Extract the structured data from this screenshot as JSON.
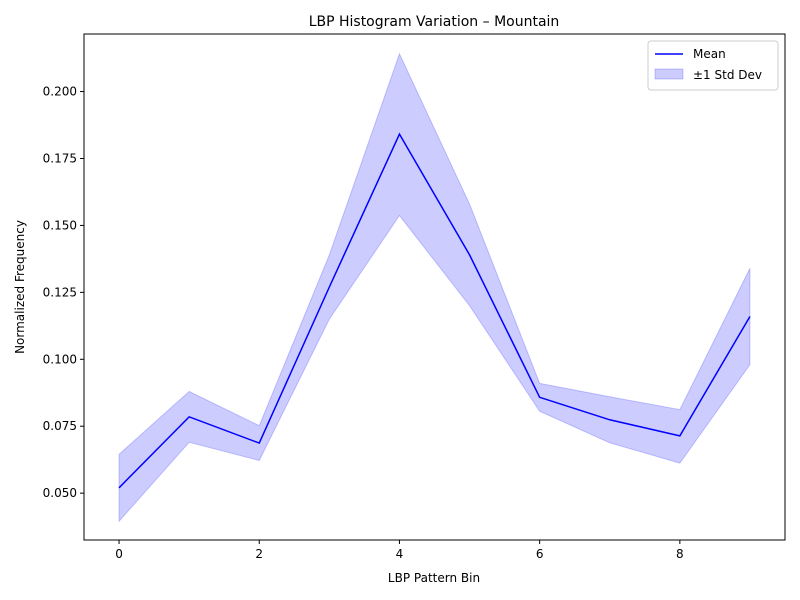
{
  "chart_data": {
    "type": "line",
    "title": "LBP Histogram Variation – Mountain",
    "xlabel": "LBP Pattern Bin",
    "ylabel": "Normalized Frequency",
    "xlim": [
      -0.5,
      9.5
    ],
    "ylim": [
      0.0325,
      0.2215
    ],
    "xticks": [
      0,
      2,
      4,
      6,
      8
    ],
    "yticks": [
      0.05,
      0.075,
      0.1,
      0.125,
      0.15,
      0.175,
      0.2
    ],
    "x": [
      0,
      1,
      2,
      3,
      4,
      5,
      6,
      7,
      8,
      9
    ],
    "series": [
      {
        "name": "Mean",
        "values": [
          0.052,
          0.0785,
          0.0687,
          0.127,
          0.1841,
          0.139,
          0.0858,
          0.0774,
          0.0714,
          0.116
        ],
        "color": "#0000ff"
      }
    ],
    "band": {
      "name": "±1 Std Dev",
      "upper": [
        0.0645,
        0.088,
        0.0752,
        0.139,
        0.2141,
        0.158,
        0.091,
        0.086,
        0.0812,
        0.134
      ],
      "lower": [
        0.0395,
        0.069,
        0.0622,
        0.115,
        0.1537,
        0.12,
        0.0806,
        0.0688,
        0.0612,
        0.098
      ],
      "color": "#0000ff"
    },
    "legend_position": "top-right",
    "grid": false
  }
}
